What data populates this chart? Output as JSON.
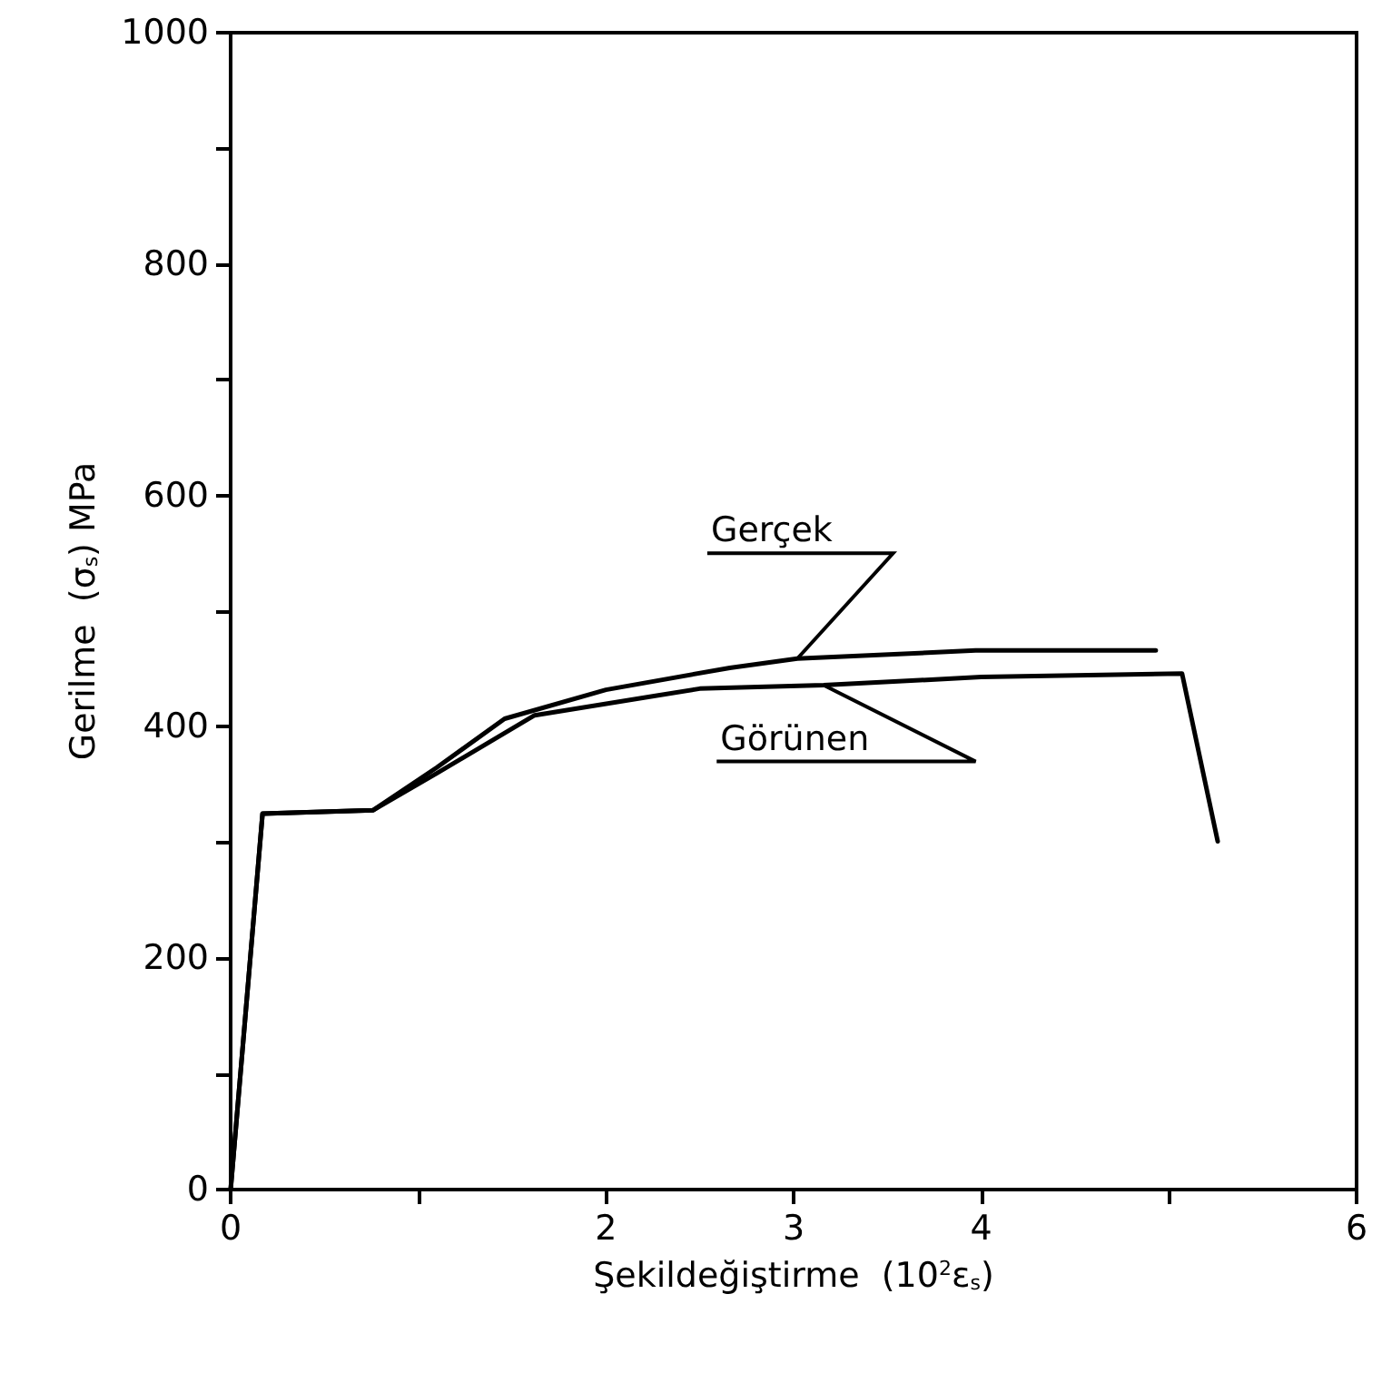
{
  "chart_data": {
    "type": "line",
    "xlabel": "Şekildeğiştirme  (10$^{2}$ε$_{s}$)",
    "ylabel": "Gerilme  (σ$_{s}$) MPa",
    "xlim": [
      0,
      6
    ],
    "xticks": [
      0,
      {
        "value": 1,
        "label": null
      },
      2,
      3,
      {
        "value": 4,
        "label": "4"
      },
      {
        "value": 5,
        "label": null
      },
      6
    ],
    "ylim": [
      0,
      1000
    ],
    "yticks": [
      0,
      {
        "value": 100,
        "label": null
      },
      200,
      {
        "value": 300,
        "label": null
      },
      400,
      {
        "value": 500,
        "label": null
      },
      600,
      {
        "value": 700,
        "label": null
      },
      800,
      {
        "value": 900,
        "label": null
      },
      1000
    ],
    "series": [
      {
        "name": "Gerçek",
        "color": "#000000",
        "x": [
          0,
          0.17,
          0.76,
          1.1,
          1.46,
          2.0,
          2.66,
          3.02,
          3.97,
          4.93
        ],
        "values": [
          0,
          325,
          328,
          365,
          407,
          432,
          451,
          459,
          466,
          466
        ]
      },
      {
        "name": "Görünen",
        "color": "#000000",
        "x": [
          0,
          0.17,
          0.76,
          1.1,
          1.62,
          2.5,
          3.16,
          4.0,
          5.07,
          5.26
        ],
        "values": [
          0,
          325,
          328,
          360,
          410,
          433,
          436,
          443,
          446,
          301
        ]
      }
    ],
    "grid": false,
    "legend": false,
    "marker": "none",
    "line_style": "solid"
  }
}
